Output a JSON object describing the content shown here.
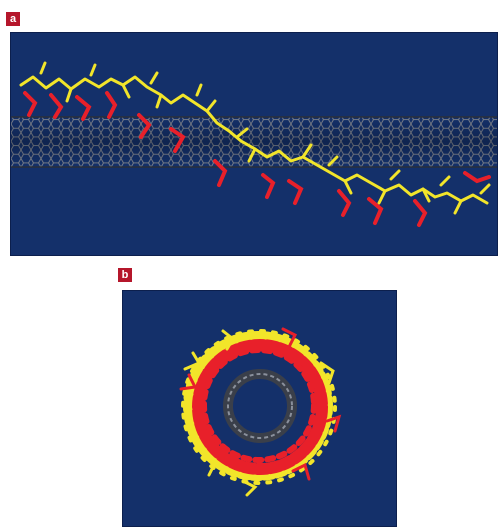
{
  "panels": [
    {
      "label": "a",
      "description_name": "side-view-molecular-render"
    },
    {
      "label": "b",
      "description_name": "end-on-molecular-render"
    }
  ],
  "colors": {
    "background": "#14306a",
    "nanotube": "#6b7280",
    "polymer_red": "#e8202a",
    "polymer_yellow": "#f2e52a",
    "label_bg": "#b5162b"
  }
}
